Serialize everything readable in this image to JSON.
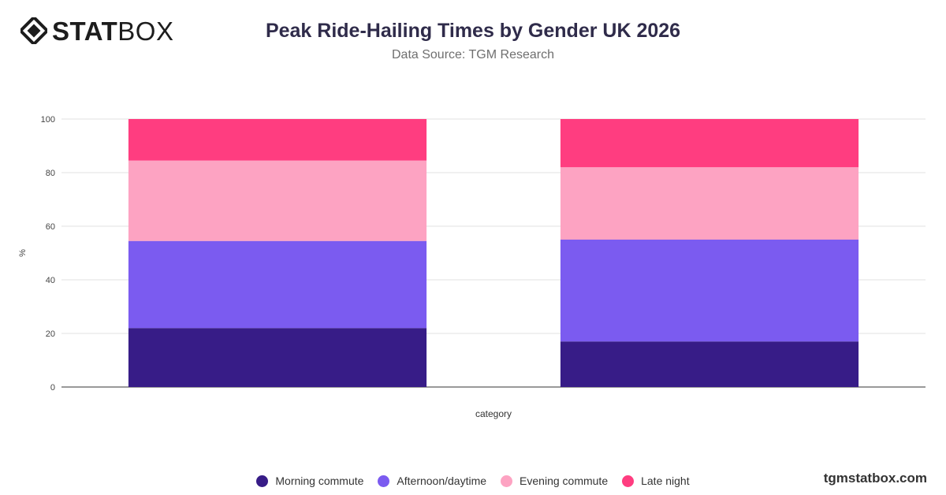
{
  "brand": {
    "logo_bold": "STAT",
    "logo_light": "BOX",
    "url": "tgmstatbox.com",
    "logo_icon": "diamond-logo-icon"
  },
  "chart_data": {
    "type": "bar",
    "stacked": true,
    "title": "Peak Ride-Hailing Times by Gender UK 2026",
    "subtitle": "Data Source: TGM Research",
    "xlabel": "category",
    "ylabel": "%",
    "ylim": [
      0,
      100
    ],
    "yticks": [
      0,
      20,
      40,
      60,
      80,
      100
    ],
    "grid": true,
    "legend_position": "bottom",
    "categories": [
      "",
      ""
    ],
    "series": [
      {
        "name": "Morning commute",
        "color": "#371c87",
        "values": [
          22,
          17
        ]
      },
      {
        "name": "Afternoon/daytime",
        "color": "#7b5bf0",
        "values": [
          32.5,
          38
        ]
      },
      {
        "name": "Evening commute",
        "color": "#fda3c2",
        "values": [
          30,
          27
        ]
      },
      {
        "name": "Late night",
        "color": "#ff3d80",
        "values": [
          15.5,
          18
        ]
      }
    ]
  }
}
